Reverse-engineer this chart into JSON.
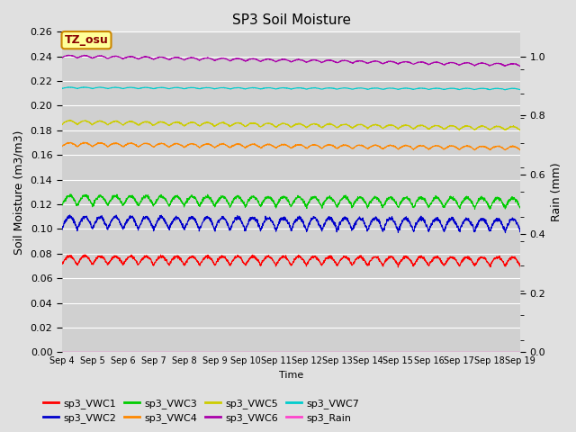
{
  "title": "SP3 Soil Moisture",
  "xlabel": "Time",
  "ylabel_left": "Soil Moisture (m3/m3)",
  "ylabel_right": "Rain (mm)",
  "background_color": "#e0e0e0",
  "plot_bg_color": "#d0d0d0",
  "ylim_left": [
    0.0,
    0.26
  ],
  "ylim_right": [
    0.0,
    1.0833
  ],
  "n_points": 2160,
  "series": {
    "sp3_VWC1": {
      "color": "#ff0000",
      "base": 0.071,
      "amp": 0.007,
      "trend": -0.001
    },
    "sp3_VWC2": {
      "color": "#0000cc",
      "base": 0.1,
      "amp": 0.01,
      "trend": -0.002
    },
    "sp3_VWC3": {
      "color": "#00cc00",
      "base": 0.119,
      "amp": 0.008,
      "trend": -0.002
    },
    "sp3_VWC4": {
      "color": "#ff8800",
      "base": 0.167,
      "amp": 0.003,
      "trend": -0.003
    },
    "sp3_VWC5": {
      "color": "#cccc00",
      "base": 0.185,
      "amp": 0.003,
      "trend": -0.005
    },
    "sp3_VWC6": {
      "color": "#aa00aa",
      "base": 0.239,
      "amp": 0.002,
      "trend": -0.007
    },
    "sp3_VWC7": {
      "color": "#00cccc",
      "base": 0.214,
      "amp": 0.001,
      "trend": -0.001
    },
    "sp3_Rain": {
      "color": "#ff44cc",
      "base": 0.0,
      "amp": 0.0,
      "trend": 0.0
    }
  },
  "tz_label": "TZ_osu",
  "tz_bg": "#ffff99",
  "tz_border": "#cc8800",
  "tz_text_color": "#880000",
  "tick_labels": [
    "Sep 4",
    "Sep 5",
    "Sep 6",
    "Sep 7",
    "Sep 8",
    "Sep 9",
    "Sep 10",
    "Sep 11",
    "Sep 12",
    "Sep 13",
    "Sep 14",
    "Sep 15",
    "Sep 16",
    "Sep 17",
    "Sep 18",
    "Sep 19"
  ],
  "yticks_left": [
    0.0,
    0.02,
    0.04,
    0.06,
    0.08,
    0.1,
    0.12,
    0.14,
    0.16,
    0.18,
    0.2,
    0.22,
    0.24,
    0.26
  ],
  "yticks_right_vals": [
    0.0,
    0.2,
    0.4,
    0.6,
    0.8,
    1.0
  ],
  "yticks_right_minor": [
    0.04167,
    0.125,
    0.208,
    0.292,
    0.375,
    0.458,
    0.542,
    0.625,
    0.708,
    0.792,
    0.875,
    0.958
  ],
  "linewidth": 0.8
}
